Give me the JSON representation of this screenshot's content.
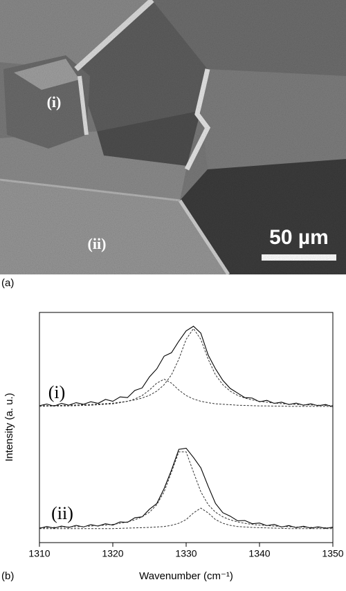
{
  "figure": {
    "panel_a": {
      "label": "(a)",
      "image_labels": [
        "(i)",
        "(ii)"
      ],
      "scale_bar": "50 µm"
    },
    "panel_b": {
      "label": "(b)"
    }
  },
  "chart_data": {
    "type": "line",
    "xlabel": "Wavenumber (cm⁻¹)",
    "ylabel": "Intensity (a. u.)",
    "xlim": [
      1310,
      1350
    ],
    "xticks": [
      1310,
      1320,
      1330,
      1340,
      1350
    ],
    "ylim": [
      0,
      10
    ],
    "annotations": [
      "(i)",
      "(ii)"
    ],
    "x": [
      1310,
      1311,
      1312,
      1313,
      1314,
      1315,
      1316,
      1317,
      1318,
      1319,
      1320,
      1321,
      1322,
      1323,
      1324,
      1325,
      1326,
      1327,
      1328,
      1329,
      1330,
      1331,
      1332,
      1333,
      1334,
      1335,
      1336,
      1337,
      1338,
      1339,
      1340,
      1341,
      1342,
      1343,
      1344,
      1345,
      1346,
      1347,
      1348,
      1349,
      1350
    ],
    "series": [
      {
        "color": "#000000",
        "style": "solid",
        "values": [
          5.95,
          6.02,
          5.93,
          6.05,
          5.97,
          6.08,
          6.01,
          6.12,
          6.05,
          6.22,
          6.14,
          6.33,
          6.3,
          6.61,
          6.72,
          7.2,
          7.55,
          8.1,
          8.25,
          8.75,
          9.2,
          9.4,
          9.1,
          8.15,
          7.55,
          7.05,
          6.7,
          6.5,
          6.3,
          6.28,
          6.12,
          6.18,
          6.05,
          6.1,
          6.0,
          6.06,
          5.97,
          6.03,
          5.95,
          6.0,
          5.9
        ]
      },
      {
        "color": "#333333",
        "style": "dashed",
        "values": [
          5.95,
          5.95,
          5.96,
          5.96,
          5.97,
          5.98,
          5.99,
          6.0,
          6.02,
          6.04,
          6.06,
          6.1,
          6.14,
          6.2,
          6.28,
          6.4,
          6.58,
          6.86,
          7.29,
          7.97,
          8.83,
          9.3,
          8.83,
          7.97,
          7.29,
          6.86,
          6.58,
          6.4,
          6.28,
          6.2,
          6.14,
          6.1,
          6.06,
          6.04,
          6.02,
          6.0,
          5.99,
          5.98,
          5.97,
          5.96,
          5.96
        ]
      },
      {
        "color": "#333333",
        "style": "dashed",
        "values": [
          5.92,
          5.93,
          5.93,
          5.94,
          5.94,
          5.95,
          5.96,
          5.97,
          5.99,
          6.01,
          6.03,
          6.08,
          6.14,
          6.24,
          6.39,
          6.63,
          6.93,
          7.1,
          6.93,
          6.63,
          6.39,
          6.24,
          6.14,
          6.08,
          6.03,
          6.01,
          5.99,
          5.97,
          5.96,
          5.95,
          5.94,
          5.94,
          5.93,
          5.93,
          5.92,
          5.92,
          5.92,
          5.92,
          5.92,
          5.92,
          5.91
        ]
      },
      {
        "color": "#000000",
        "style": "solid",
        "values": [
          0.62,
          0.7,
          0.63,
          0.72,
          0.66,
          0.75,
          0.68,
          0.78,
          0.72,
          0.82,
          0.76,
          0.9,
          0.88,
          1.08,
          1.12,
          1.45,
          1.7,
          2.35,
          3.15,
          4.05,
          4.1,
          3.7,
          3.25,
          2.45,
          1.7,
          1.3,
          1.15,
          0.95,
          0.96,
          0.82,
          0.85,
          0.74,
          0.79,
          0.68,
          0.74,
          0.65,
          0.71,
          0.63,
          0.69,
          0.62,
          0.67
        ]
      },
      {
        "color": "#333333",
        "style": "dashed",
        "values": [
          0.65,
          0.65,
          0.66,
          0.67,
          0.68,
          0.69,
          0.7,
          0.72,
          0.74,
          0.76,
          0.79,
          0.84,
          0.9,
          0.99,
          1.12,
          1.32,
          1.65,
          2.21,
          3.06,
          3.94,
          3.94,
          3.06,
          2.21,
          1.65,
          1.32,
          1.12,
          0.99,
          0.9,
          0.84,
          0.79,
          0.76,
          0.74,
          0.72,
          0.7,
          0.69,
          0.68,
          0.67,
          0.66,
          0.65,
          0.65,
          0.64
        ]
      },
      {
        "color": "#333333",
        "style": "dashed",
        "values": [
          0.61,
          0.61,
          0.61,
          0.61,
          0.61,
          0.61,
          0.61,
          0.61,
          0.61,
          0.61,
          0.61,
          0.62,
          0.63,
          0.64,
          0.65,
          0.66,
          0.68,
          0.7,
          0.75,
          0.84,
          1.0,
          1.29,
          1.5,
          1.29,
          1.0,
          0.84,
          0.75,
          0.7,
          0.68,
          0.66,
          0.65,
          0.64,
          0.63,
          0.62,
          0.61,
          0.61,
          0.61,
          0.61,
          0.61,
          0.61,
          0.61
        ]
      }
    ]
  }
}
